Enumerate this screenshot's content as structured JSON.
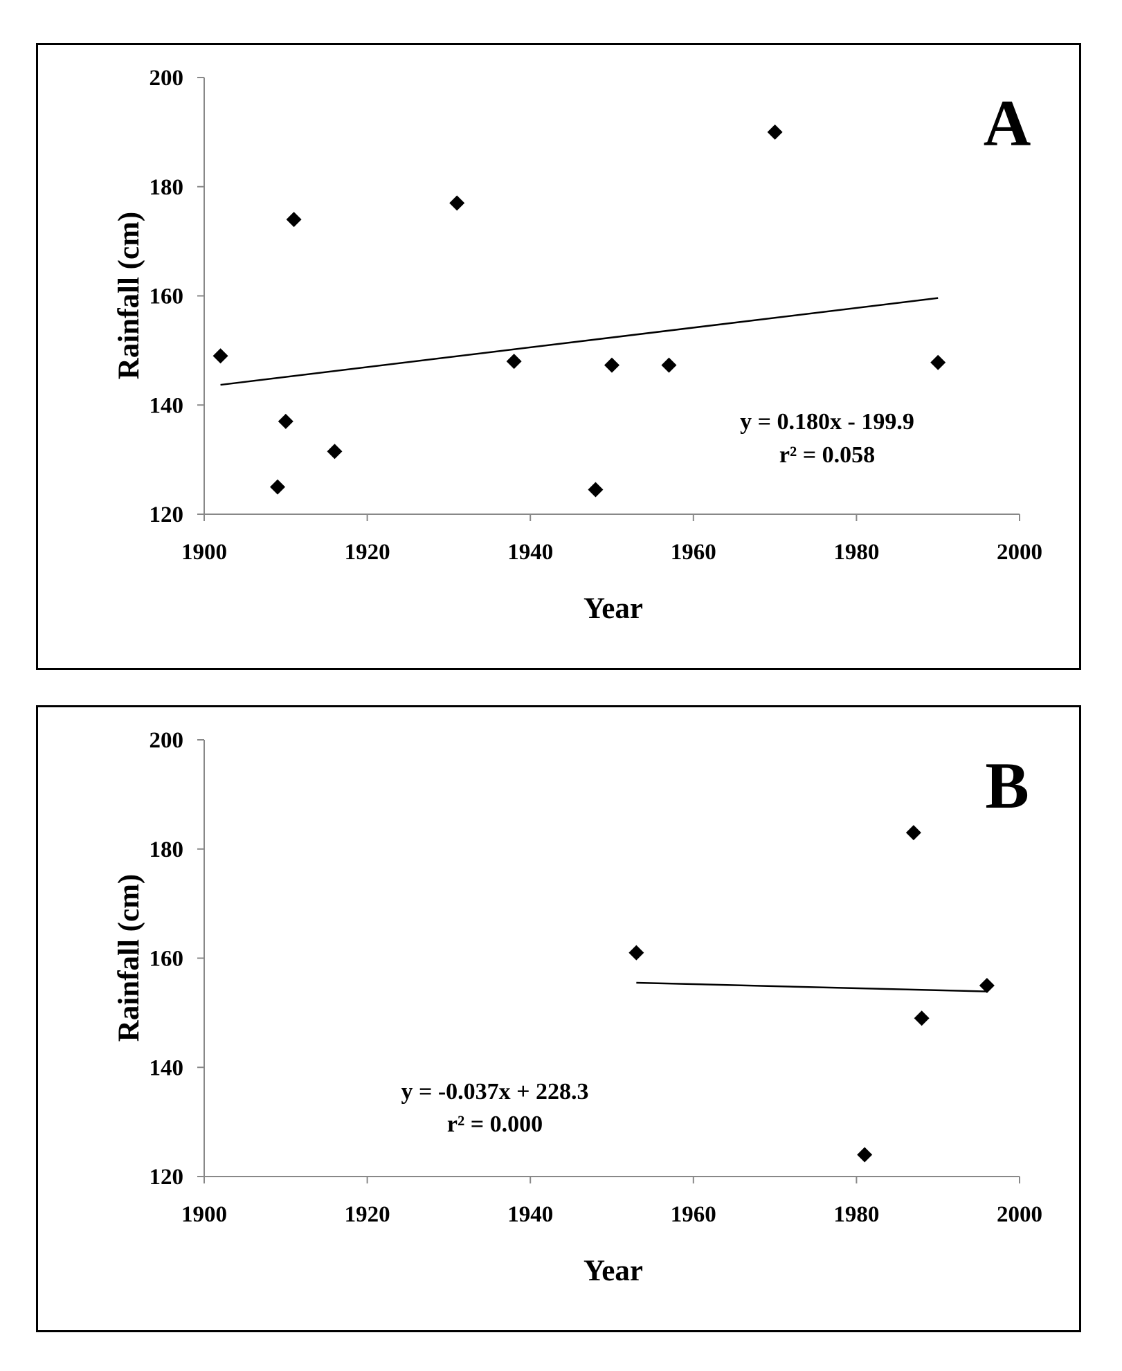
{
  "chart_data": [
    {
      "type": "scatter",
      "panel_label": "A",
      "xlabel": "Year",
      "ylabel": "Rainfall (cm)",
      "xlim": [
        1900,
        2000
      ],
      "ylim": [
        120,
        200
      ],
      "xticks": [
        1900,
        1920,
        1940,
        1960,
        1980,
        2000
      ],
      "yticks": [
        120,
        140,
        160,
        180,
        200
      ],
      "points": [
        {
          "x": 1902,
          "y": 149
        },
        {
          "x": 1909,
          "y": 125
        },
        {
          "x": 1910,
          "y": 137
        },
        {
          "x": 1911,
          "y": 174
        },
        {
          "x": 1916,
          "y": 131.5
        },
        {
          "x": 1931,
          "y": 177
        },
        {
          "x": 1938,
          "y": 148
        },
        {
          "x": 1948,
          "y": 124.5
        },
        {
          "x": 1950,
          "y": 147.3
        },
        {
          "x": 1957,
          "y": 147.3
        },
        {
          "x": 1970,
          "y": 190
        },
        {
          "x": 1990,
          "y": 147.8
        }
      ],
      "trendline": {
        "x": [
          1902,
          1990
        ],
        "y": [
          143.7,
          159.6
        ]
      },
      "equation": "y = 0.180x - 199.9",
      "r_squared": "r² = 0.058",
      "annotation_position": "lower-right",
      "grid": false,
      "marker": "diamond",
      "marker_color": "#000000"
    },
    {
      "type": "scatter",
      "panel_label": "B",
      "xlabel": "Year",
      "ylabel": "Rainfall (cm)",
      "xlim": [
        1900,
        2000
      ],
      "ylim": [
        120,
        200
      ],
      "xticks": [
        1900,
        1920,
        1940,
        1960,
        1980,
        2000
      ],
      "yticks": [
        120,
        140,
        160,
        180,
        200
      ],
      "points": [
        {
          "x": 1953,
          "y": 161
        },
        {
          "x": 1981,
          "y": 124
        },
        {
          "x": 1987,
          "y": 183
        },
        {
          "x": 1988,
          "y": 149
        },
        {
          "x": 1996,
          "y": 155
        }
      ],
      "trendline": {
        "x": [
          1953,
          1996
        ],
        "y": [
          155.5,
          153.9
        ]
      },
      "equation": "y = -0.037x + 228.3",
      "r_squared": "r² = 0.000",
      "annotation_position": "lower-left",
      "grid": false,
      "marker": "diamond",
      "marker_color": "#000000"
    }
  ]
}
